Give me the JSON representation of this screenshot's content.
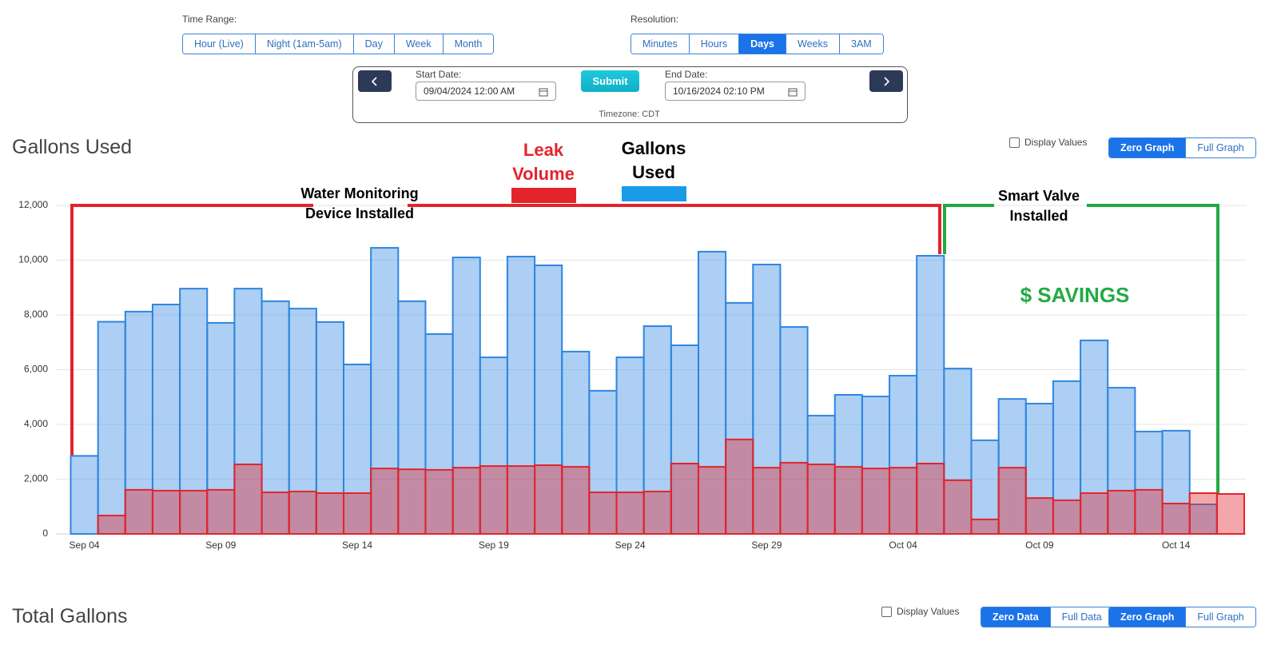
{
  "controls": {
    "time_range": {
      "label": "Time Range:",
      "options": [
        "Hour (Live)",
        "Night (1am-5am)",
        "Day",
        "Week",
        "Month"
      ]
    },
    "resolution": {
      "label": "Resolution:",
      "options": [
        "Minutes",
        "Hours",
        "Days",
        "Weeks",
        "3AM"
      ],
      "active": 2
    },
    "start_date": {
      "label": "Start Date:",
      "value": "09/04/2024 12:00 AM"
    },
    "submit": "Submit",
    "end_date": {
      "label": "End Date:",
      "value": "10/16/2024 02:10 PM"
    },
    "timezone": "Timezone: CDT"
  },
  "chart_options": {
    "display_values": "Display Values",
    "buttons": [
      "Zero Graph",
      "Full Graph"
    ],
    "active": 0
  },
  "chart_data": {
    "type": "bar",
    "title": "Gallons Used",
    "categories": [
      "Sep 04",
      null,
      null,
      null,
      null,
      "Sep 09",
      null,
      null,
      null,
      null,
      "Sep 14",
      null,
      null,
      null,
      null,
      "Sep 19",
      null,
      null,
      null,
      null,
      "Sep 24",
      null,
      null,
      null,
      null,
      "Sep 29",
      null,
      null,
      null,
      null,
      "Oct 04",
      null,
      null,
      null,
      null,
      "Oct 09",
      null,
      null,
      null,
      null,
      "Oct 14",
      null,
      null
    ],
    "series": [
      {
        "name": "Leak Volume",
        "color": "#e3242b",
        "values": [
          null,
          670,
          1610,
          1580,
          1580,
          1610,
          2540,
          1520,
          1550,
          1490,
          1490,
          2390,
          2360,
          2340,
          2420,
          2480,
          2480,
          2510,
          2450,
          1520,
          1520,
          1550,
          2570,
          2450,
          3450,
          2420,
          2600,
          2540,
          2450,
          2390,
          2420,
          2570,
          1960,
          530,
          2420,
          1310,
          1230,
          1490,
          1580,
          1610,
          1110,
          1490,
          1460
        ]
      },
      {
        "name": "Gallons Used",
        "color": "#2f86e0",
        "values": [
          2850,
          7750,
          8120,
          8380,
          8960,
          7710,
          8960,
          8500,
          8230,
          7740,
          6190,
          10450,
          8500,
          7300,
          10100,
          6450,
          10130,
          9810,
          6660,
          5230,
          6450,
          7590,
          6890,
          10310,
          8440,
          9840,
          7560,
          4320,
          5080,
          5020,
          5780,
          10160,
          6040,
          3420,
          4930,
          4760,
          5580,
          7070,
          5340,
          3740,
          3770,
          1080,
          null
        ]
      }
    ],
    "ylim": [
      0,
      12000
    ],
    "yticks": [
      0,
      {
        "value": 2000,
        "label": "2,000"
      },
      {
        "value": 4000,
        "label": "4,000"
      },
      {
        "value": 6000,
        "label": "6,000"
      },
      {
        "value": 8000,
        "label": "8,000"
      },
      {
        "value": 10000,
        "label": "10,000"
      },
      {
        "value": 12000,
        "label": "12,000"
      }
    ],
    "grid": true,
    "annotations": [
      {
        "text": "Water Monitoring Device Installed",
        "color": "#000000"
      },
      {
        "text": "Smart Valve Installed",
        "color": "#000000"
      },
      {
        "text": "$ SAVINGS",
        "color": "#22aa44"
      }
    ]
  },
  "total_section": {
    "title": "Total Gallons",
    "display_values": "Display Values",
    "data_buttons": [
      "Zero Data",
      "Full Data"
    ],
    "data_active": 0,
    "graph_buttons": [
      "Zero Graph",
      "Full Graph"
    ],
    "graph_active": 0
  }
}
